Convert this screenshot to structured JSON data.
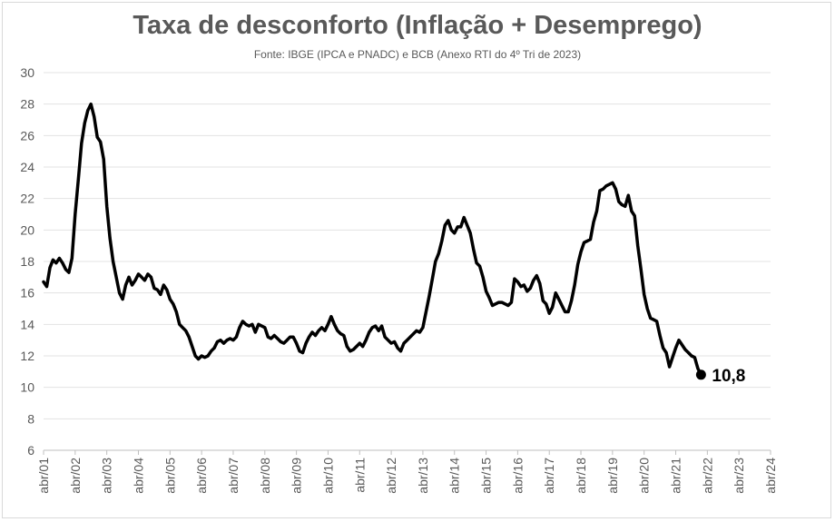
{
  "chart_data": {
    "type": "line",
    "title": "Taxa de desconforto (Inflação + Desemprego)",
    "subtitle": "Fonte: IBGE (IPCA e PNADC) e BCB (Anexo RTI do 4º Tri de 2023)",
    "xlabel": "",
    "ylabel": "",
    "ylim": [
      6,
      30
    ],
    "yticks": [
      6,
      8,
      10,
      12,
      14,
      16,
      18,
      20,
      22,
      24,
      26,
      28,
      30
    ],
    "xlim": [
      2001.25,
      2024.25
    ],
    "xticks": [
      "abr/01",
      "abr/02",
      "abr/03",
      "abr/04",
      "abr/05",
      "abr/06",
      "abr/07",
      "abr/08",
      "abr/09",
      "abr/10",
      "abr/11",
      "abr/12",
      "abr/13",
      "abr/14",
      "abr/15",
      "abr/16",
      "abr/17",
      "abr/18",
      "abr/19",
      "abr/20",
      "abr/21",
      "abr/22",
      "abr/23",
      "abr/24"
    ],
    "grid": true,
    "line_color": "#000000",
    "end_label": "10,8",
    "series": [
      {
        "values": [
          [
            2001.25,
            16.7
          ],
          [
            2001.35,
            16.4
          ],
          [
            2001.45,
            17.6
          ],
          [
            2001.55,
            18.1
          ],
          [
            2001.65,
            17.9
          ],
          [
            2001.75,
            18.2
          ],
          [
            2001.85,
            17.9
          ],
          [
            2001.95,
            17.5
          ],
          [
            2002.05,
            17.3
          ],
          [
            2002.15,
            18.2
          ],
          [
            2002.25,
            21.0
          ],
          [
            2002.35,
            23.2
          ],
          [
            2002.45,
            25.5
          ],
          [
            2002.55,
            26.8
          ],
          [
            2002.65,
            27.6
          ],
          [
            2002.75,
            28.0
          ],
          [
            2002.85,
            27.2
          ],
          [
            2002.95,
            25.9
          ],
          [
            2003.05,
            25.6
          ],
          [
            2003.15,
            24.5
          ],
          [
            2003.25,
            21.5
          ],
          [
            2003.35,
            19.5
          ],
          [
            2003.45,
            18.0
          ],
          [
            2003.55,
            17.0
          ],
          [
            2003.65,
            16.0
          ],
          [
            2003.75,
            15.6
          ],
          [
            2003.85,
            16.5
          ],
          [
            2003.95,
            17.0
          ],
          [
            2004.05,
            16.5
          ],
          [
            2004.15,
            16.8
          ],
          [
            2004.25,
            17.2
          ],
          [
            2004.35,
            17.0
          ],
          [
            2004.45,
            16.8
          ],
          [
            2004.55,
            17.2
          ],
          [
            2004.65,
            17.0
          ],
          [
            2004.75,
            16.3
          ],
          [
            2004.85,
            16.2
          ],
          [
            2004.95,
            15.9
          ],
          [
            2005.05,
            16.5
          ],
          [
            2005.15,
            16.2
          ],
          [
            2005.25,
            15.6
          ],
          [
            2005.35,
            15.3
          ],
          [
            2005.45,
            14.8
          ],
          [
            2005.55,
            14.0
          ],
          [
            2005.65,
            13.8
          ],
          [
            2005.75,
            13.6
          ],
          [
            2005.85,
            13.2
          ],
          [
            2005.95,
            12.6
          ],
          [
            2006.05,
            12.0
          ],
          [
            2006.15,
            11.8
          ],
          [
            2006.25,
            12.0
          ],
          [
            2006.35,
            11.9
          ],
          [
            2006.45,
            12.0
          ],
          [
            2006.55,
            12.3
          ],
          [
            2006.65,
            12.5
          ],
          [
            2006.75,
            12.9
          ],
          [
            2006.85,
            13.0
          ],
          [
            2006.95,
            12.8
          ],
          [
            2007.05,
            13.0
          ],
          [
            2007.15,
            13.1
          ],
          [
            2007.25,
            13.0
          ],
          [
            2007.35,
            13.2
          ],
          [
            2007.45,
            13.8
          ],
          [
            2007.55,
            14.2
          ],
          [
            2007.65,
            14.0
          ],
          [
            2007.75,
            13.9
          ],
          [
            2007.85,
            14.0
          ],
          [
            2007.95,
            13.5
          ],
          [
            2008.05,
            14.0
          ],
          [
            2008.15,
            13.9
          ],
          [
            2008.25,
            13.8
          ],
          [
            2008.35,
            13.2
          ],
          [
            2008.45,
            13.1
          ],
          [
            2008.55,
            13.3
          ],
          [
            2008.65,
            13.1
          ],
          [
            2008.75,
            12.9
          ],
          [
            2008.85,
            12.8
          ],
          [
            2008.95,
            13.0
          ],
          [
            2009.05,
            13.2
          ],
          [
            2009.15,
            13.2
          ],
          [
            2009.25,
            12.8
          ],
          [
            2009.35,
            12.3
          ],
          [
            2009.45,
            12.2
          ],
          [
            2009.55,
            12.8
          ],
          [
            2009.65,
            13.2
          ],
          [
            2009.75,
            13.5
          ],
          [
            2009.85,
            13.3
          ],
          [
            2009.95,
            13.6
          ],
          [
            2010.05,
            13.8
          ],
          [
            2010.15,
            13.6
          ],
          [
            2010.25,
            14.0
          ],
          [
            2010.35,
            14.5
          ],
          [
            2010.45,
            14.0
          ],
          [
            2010.55,
            13.6
          ],
          [
            2010.65,
            13.4
          ],
          [
            2010.75,
            13.3
          ],
          [
            2010.85,
            12.6
          ],
          [
            2010.95,
            12.3
          ],
          [
            2011.05,
            12.4
          ],
          [
            2011.15,
            12.6
          ],
          [
            2011.25,
            12.8
          ],
          [
            2011.35,
            12.6
          ],
          [
            2011.45,
            13.0
          ],
          [
            2011.55,
            13.5
          ],
          [
            2011.65,
            13.8
          ],
          [
            2011.75,
            13.9
          ],
          [
            2011.85,
            13.6
          ],
          [
            2011.95,
            13.9
          ],
          [
            2012.05,
            13.2
          ],
          [
            2012.15,
            13.0
          ],
          [
            2012.25,
            12.8
          ],
          [
            2012.35,
            12.9
          ],
          [
            2012.45,
            12.5
          ],
          [
            2012.55,
            12.3
          ],
          [
            2012.65,
            12.8
          ],
          [
            2012.75,
            13.0
          ],
          [
            2012.85,
            13.2
          ],
          [
            2012.95,
            13.4
          ],
          [
            2013.05,
            13.6
          ],
          [
            2013.15,
            13.5
          ],
          [
            2013.25,
            13.8
          ],
          [
            2013.35,
            14.8
          ],
          [
            2013.45,
            15.8
          ],
          [
            2013.55,
            16.9
          ],
          [
            2013.65,
            18.0
          ],
          [
            2013.75,
            18.5
          ],
          [
            2013.85,
            19.3
          ],
          [
            2013.95,
            20.3
          ],
          [
            2014.05,
            20.6
          ],
          [
            2014.15,
            20.0
          ],
          [
            2014.25,
            19.8
          ],
          [
            2014.35,
            20.2
          ],
          [
            2014.45,
            20.2
          ],
          [
            2014.55,
            20.8
          ],
          [
            2014.65,
            20.3
          ],
          [
            2014.75,
            19.8
          ],
          [
            2014.85,
            18.8
          ],
          [
            2014.95,
            17.9
          ],
          [
            2015.05,
            17.7
          ],
          [
            2015.15,
            17.0
          ],
          [
            2015.25,
            16.1
          ],
          [
            2015.35,
            15.7
          ],
          [
            2015.45,
            15.2
          ],
          [
            2015.55,
            15.3
          ],
          [
            2015.65,
            15.4
          ],
          [
            2015.75,
            15.4
          ],
          [
            2015.85,
            15.3
          ],
          [
            2015.95,
            15.2
          ],
          [
            2016.05,
            15.4
          ],
          [
            2016.15,
            16.9
          ],
          [
            2016.25,
            16.7
          ],
          [
            2016.35,
            16.4
          ],
          [
            2016.45,
            16.5
          ],
          [
            2016.55,
            16.1
          ],
          [
            2016.65,
            16.3
          ],
          [
            2016.75,
            16.8
          ],
          [
            2016.85,
            17.1
          ],
          [
            2016.95,
            16.6
          ],
          [
            2017.05,
            15.5
          ],
          [
            2017.15,
            15.3
          ],
          [
            2017.25,
            14.7
          ],
          [
            2017.35,
            15.1
          ],
          [
            2017.45,
            16.0
          ],
          [
            2017.55,
            15.6
          ],
          [
            2017.65,
            15.2
          ],
          [
            2017.75,
            14.8
          ],
          [
            2017.85,
            14.8
          ],
          [
            2017.95,
            15.5
          ],
          [
            2018.05,
            16.5
          ],
          [
            2018.15,
            17.8
          ],
          [
            2018.25,
            18.6
          ],
          [
            2018.35,
            19.2
          ],
          [
            2018.45,
            19.3
          ],
          [
            2018.55,
            19.4
          ],
          [
            2018.65,
            20.5
          ],
          [
            2018.75,
            21.2
          ],
          [
            2018.85,
            22.5
          ],
          [
            2018.95,
            22.6
          ],
          [
            2019.05,
            22.8
          ],
          [
            2019.15,
            22.9
          ],
          [
            2019.25,
            23.0
          ],
          [
            2019.35,
            22.6
          ],
          [
            2019.45,
            21.8
          ],
          [
            2019.55,
            21.6
          ],
          [
            2019.65,
            21.5
          ],
          [
            2019.75,
            22.2
          ],
          [
            2019.85,
            21.2
          ],
          [
            2019.95,
            20.9
          ],
          [
            2020.05,
            19.0
          ],
          [
            2020.15,
            17.5
          ],
          [
            2020.25,
            15.9
          ],
          [
            2020.35,
            15.0
          ],
          [
            2020.45,
            14.4
          ],
          [
            2020.55,
            14.3
          ],
          [
            2020.65,
            14.2
          ],
          [
            2020.75,
            13.3
          ],
          [
            2020.85,
            12.5
          ],
          [
            2020.95,
            12.2
          ],
          [
            2021.05,
            11.3
          ],
          [
            2021.15,
            11.9
          ],
          [
            2021.25,
            12.5
          ],
          [
            2021.35,
            13.0
          ],
          [
            2021.45,
            12.7
          ],
          [
            2021.55,
            12.4
          ],
          [
            2021.65,
            12.2
          ],
          [
            2021.75,
            12.0
          ],
          [
            2021.85,
            11.9
          ],
          [
            2021.95,
            11.2
          ],
          [
            2022.05,
            10.8
          ]
        ]
      }
    ]
  }
}
